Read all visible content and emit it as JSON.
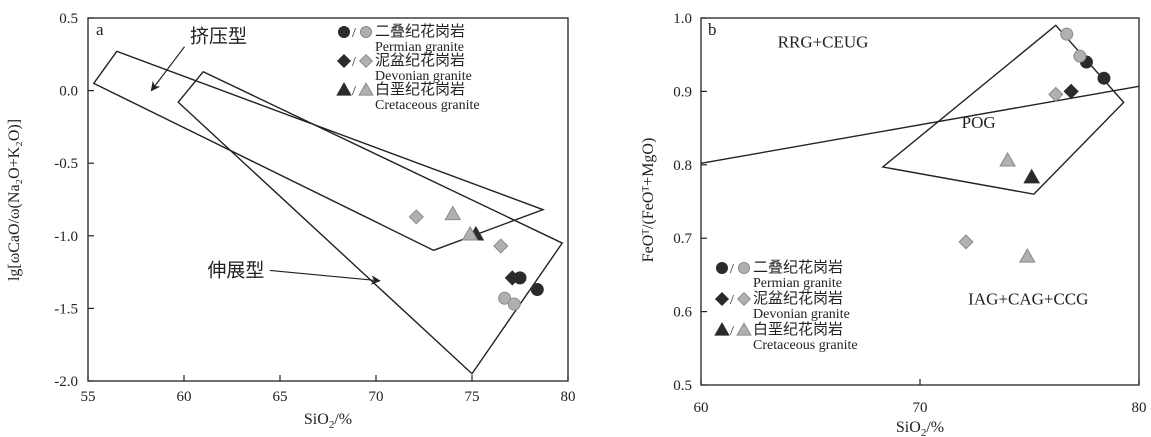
{
  "legend": [
    {
      "zh": "二叠纪花岗岩",
      "en": "Permian granite",
      "shape": "circle"
    },
    {
      "zh": "泥盆纪花岗岩",
      "en": "Devonian granite",
      "shape": "diamond"
    },
    {
      "zh": "白垩纪花岗岩",
      "en": "Cretaceous granite",
      "shape": "triangle"
    }
  ],
  "colors": {
    "dark": "#2b2b2b",
    "light": "#b0b0b0",
    "light_stroke": "#8a8a8a"
  },
  "chart_data": [
    {
      "type": "scatter",
      "panel_label": "a",
      "xlabel_main": "SiO",
      "xlabel_sub": "2",
      "xlabel_tail": "/%",
      "ylabel": "lg[ωCaO/ω(Na₂O+K₂O)]",
      "xlim": [
        55,
        80
      ],
      "ylim": [
        -2.0,
        0.5
      ],
      "xticks": [
        55,
        60,
        65,
        70,
        75,
        80
      ],
      "yticks": [
        0.5,
        0.0,
        -0.5,
        -1.0,
        -1.5,
        -2.0
      ],
      "ytick_labels": [
        "0.5",
        "0.0",
        "-0.5",
        "-1.0",
        "-1.5",
        "-2.0"
      ],
      "fields": [
        {
          "name": "compression",
          "label": "挤压型",
          "polygon": [
            [
              55.3,
              0.05
            ],
            [
              56.5,
              0.27
            ],
            [
              78.7,
              -0.82
            ],
            [
              73.0,
              -1.1
            ]
          ]
        },
        {
          "name": "extension",
          "label": "伸展型",
          "polygon": [
            [
              59.7,
              -0.08
            ],
            [
              61.0,
              0.13
            ],
            [
              79.7,
              -1.05
            ],
            [
              75.0,
              -1.95
            ]
          ]
        }
      ],
      "field_labels": [
        {
          "text": "挤压型",
          "x": 61.8,
          "y": 0.33,
          "arrow_to": [
            58.3,
            0.0
          ]
        },
        {
          "text": "伸展型",
          "x": 62.7,
          "y": -1.28,
          "arrow_to": [
            70.2,
            -1.31
          ]
        }
      ],
      "series": [
        {
          "name": "Permian granite",
          "shape": "circle",
          "tone": "dark",
          "points": [
            [
              77.5,
              -1.29
            ],
            [
              78.4,
              -1.37
            ]
          ]
        },
        {
          "name": "Permian granite",
          "shape": "circle",
          "tone": "light",
          "points": [
            [
              76.7,
              -1.43
            ],
            [
              77.2,
              -1.47
            ]
          ]
        },
        {
          "name": "Devonian granite",
          "shape": "diamond",
          "tone": "dark",
          "points": [
            [
              77.1,
              -1.29
            ]
          ]
        },
        {
          "name": "Devonian granite",
          "shape": "diamond",
          "tone": "light",
          "points": [
            [
              72.1,
              -0.87
            ],
            [
              76.5,
              -1.07
            ]
          ]
        },
        {
          "name": "Cretaceous granite",
          "shape": "triangle",
          "tone": "dark",
          "points": [
            [
              75.2,
              -0.99
            ]
          ]
        },
        {
          "name": "Cretaceous granite",
          "shape": "triangle",
          "tone": "light",
          "points": [
            [
              74.0,
              -0.85
            ],
            [
              74.9,
              -0.99
            ]
          ]
        }
      ]
    },
    {
      "type": "scatter",
      "panel_label": "b",
      "xlabel_main": "SiO",
      "xlabel_sub": "2",
      "xlabel_tail": "/%",
      "ylabel": "FeOᵀ/(FeOᵀ+MgO)",
      "xlim": [
        60,
        80
      ],
      "ylim": [
        0.5,
        1.0
      ],
      "xticks": [
        60,
        70,
        80
      ],
      "yticks": [
        1.0,
        0.9,
        0.8,
        0.7,
        0.6,
        0.5
      ],
      "ytick_labels": [
        "1.0",
        "0.9",
        "0.8",
        "0.7",
        "0.6",
        "0.5"
      ],
      "line": [
        [
          60,
          0.802
        ],
        [
          80,
          0.907
        ]
      ],
      "fields": [
        {
          "name": "POG",
          "label": "POG",
          "polygon": [
            [
              68.3,
              0.797
            ],
            [
              76.2,
              0.99
            ],
            [
              79.3,
              0.885
            ],
            [
              75.2,
              0.76
            ]
          ]
        }
      ],
      "field_labels": [
        {
          "text": "RRG+CEUG",
          "x": 63.5,
          "y": 0.96
        },
        {
          "text": "POG",
          "x": 71.9,
          "y": 0.85
        },
        {
          "text": "IAG+CAG+CCG",
          "x": 72.2,
          "y": 0.61
        }
      ],
      "series": [
        {
          "name": "Permian granite",
          "shape": "circle",
          "tone": "dark",
          "points": [
            [
              77.6,
              0.94
            ],
            [
              78.4,
              0.918
            ]
          ]
        },
        {
          "name": "Permian granite",
          "shape": "circle",
          "tone": "light",
          "points": [
            [
              76.7,
              0.978
            ],
            [
              77.3,
              0.948
            ]
          ]
        },
        {
          "name": "Devonian granite",
          "shape": "diamond",
          "tone": "dark",
          "points": [
            [
              76.9,
              0.9
            ]
          ]
        },
        {
          "name": "Devonian granite",
          "shape": "diamond",
          "tone": "light",
          "points": [
            [
              76.2,
              0.896
            ],
            [
              72.1,
              0.695
            ]
          ]
        },
        {
          "name": "Cretaceous granite",
          "shape": "triangle",
          "tone": "dark",
          "points": [
            [
              75.1,
              0.783
            ]
          ]
        },
        {
          "name": "Cretaceous granite",
          "shape": "triangle",
          "tone": "light",
          "points": [
            [
              74.0,
              0.806
            ],
            [
              74.9,
              0.675
            ]
          ]
        }
      ]
    }
  ]
}
